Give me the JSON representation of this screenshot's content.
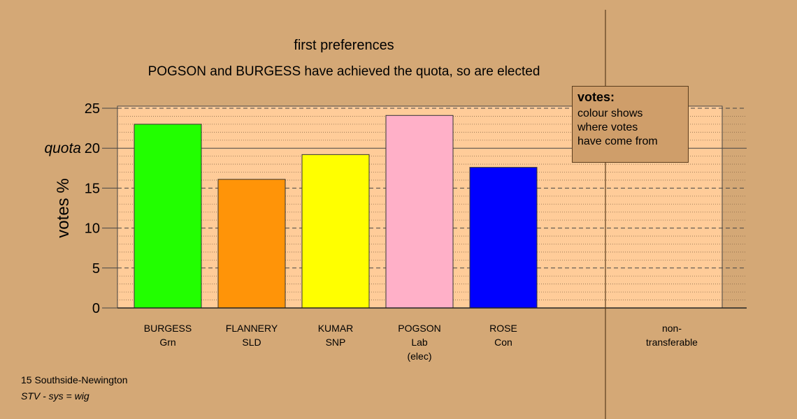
{
  "header": {
    "title": "first preferences",
    "subtitle": "POGSON and BURGESS have achieved the quota, so are elected"
  },
  "legend": {
    "title": "votes:",
    "lines": [
      "colour shows",
      "where votes",
      "have come from"
    ]
  },
  "footer": {
    "constituency": "15 Southside-Newington",
    "system": "STV - sys = wig"
  },
  "chart_data": {
    "type": "bar",
    "ylabel": "votes %",
    "ylim": [
      0,
      25
    ],
    "yticks": [
      0,
      5,
      10,
      15,
      20,
      25
    ],
    "quota": {
      "value": 20,
      "label": "quota"
    },
    "plot_background": "#ffcc99",
    "categories": [
      {
        "line1": "BURGESS",
        "line2": "Grn",
        "line3": "",
        "value": 23.0,
        "color": "#22ff00"
      },
      {
        "line1": "FLANNERY",
        "line2": "SLD",
        "line3": "",
        "value": 16.1,
        "color": "#ff9408"
      },
      {
        "line1": "KUMAR",
        "line2": "SNP",
        "line3": "",
        "value": 19.2,
        "color": "#ffff00"
      },
      {
        "line1": "POGSON",
        "line2": "Lab",
        "line3": "(elec)",
        "value": 24.1,
        "color": "#ffb0c8"
      },
      {
        "line1": "ROSE",
        "line2": "Con",
        "line3": "",
        "value": 17.6,
        "color": "#0000ff"
      }
    ],
    "non_transferable": {
      "line1": "non-",
      "line2": "transferable",
      "value": 0
    }
  }
}
